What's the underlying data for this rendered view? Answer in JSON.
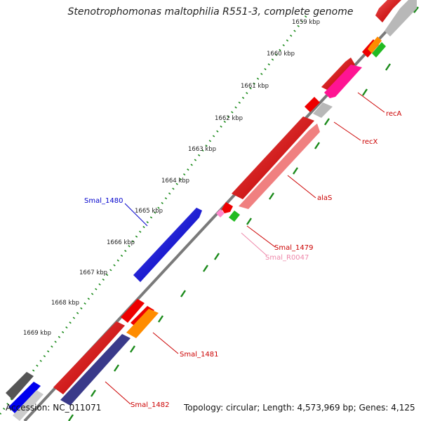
{
  "title": "Stenotrophomonas maltophilia R551-3, complete genome",
  "footer": {
    "accession": "Accession: NC_011071",
    "summary": "Topology: circular; Length: 4,573,969 bp; Genes: 4,125"
  },
  "colors": {
    "backbone": "#7a7a7a",
    "tick": "#1a8a1a",
    "cds_red": "#ee0000",
    "cds_salmon": "#f08080",
    "cds_pink": "#ff1493",
    "cds_gray": "#b8b8b8",
    "cds_orange": "#ff8c00",
    "cds_green": "#22bb22",
    "cds_blue": "#0000ee",
    "cds_navy": "#3a3a8a",
    "cds_dark": "#555555",
    "label_red": "#cc0000",
    "label_blue": "#0000cc",
    "label_pink": "#ee88aa"
  },
  "ticks": [
    "1659 kbp",
    "1660 kbp",
    "1661 kbp",
    "1662 kbp",
    "1663 kbp",
    "1664 kbp",
    "1665 kbp",
    "1666 kbp",
    "1667 kbp",
    "1668 kbp",
    "1669 kbp"
  ],
  "genes": {
    "recA": "recA",
    "recX": "recX",
    "alaS": "alaS",
    "smal1479": "Smal_1479",
    "smalR0047": "Smal_R0047",
    "smal1480": "Smal_1480",
    "smal1481": "Smal_1481",
    "smal1482": "Smal_1482"
  }
}
